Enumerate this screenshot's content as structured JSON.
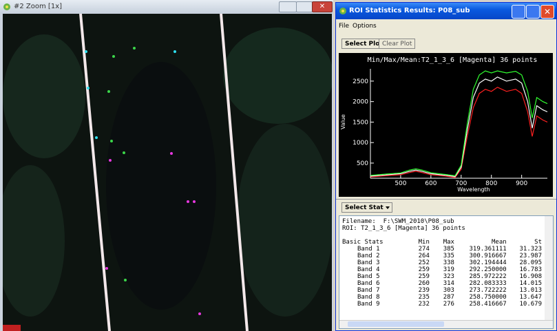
{
  "zoom_window": {
    "title": "#2 Zoom [1x]"
  },
  "stats_window": {
    "title": "ROI Statistics Results: P08_sub",
    "menu": [
      "File",
      "Options"
    ],
    "buttons": [
      "Select Plot",
      "Clear Plot"
    ],
    "stat_button": "Select Stat",
    "filename_line": "Filename:  F:\\SWM_2010\\P08_sub",
    "roi_line": "ROI: T2_1_3_6 [Magenta] 36 points",
    "table": {
      "header": [
        "Basic Stats",
        "Min",
        "Max",
        "Mean",
        "St"
      ],
      "rows": [
        [
          "Band 1",
          "274",
          "385",
          "319.361111",
          "31.323"
        ],
        [
          "Band 2",
          "264",
          "335",
          "300.916667",
          "23.987"
        ],
        [
          "Band 3",
          "252",
          "338",
          "302.194444",
          "28.095"
        ],
        [
          "Band 4",
          "259",
          "319",
          "292.250000",
          "16.783"
        ],
        [
          "Band 5",
          "259",
          "323",
          "285.972222",
          "16.908"
        ],
        [
          "Band 6",
          "260",
          "314",
          "282.083333",
          "14.015"
        ],
        [
          "Band 7",
          "239",
          "303",
          "273.722222",
          "13.013"
        ],
        [
          "Band 8",
          "235",
          "287",
          "258.750000",
          "13.647"
        ],
        [
          "Band 9",
          "232",
          "276",
          "258.416667",
          "10.679"
        ]
      ]
    }
  },
  "chart_data": {
    "type": "line",
    "title": "Min/Max/Mean:T2_1_3_6 [Magenta] 36 points",
    "xlabel": "Wavelength",
    "ylabel": "Value",
    "x": [
      400,
      450,
      500,
      530,
      550,
      570,
      600,
      650,
      680,
      700,
      720,
      740,
      760,
      780,
      800,
      820,
      850,
      880,
      900,
      920,
      935,
      950,
      970,
      985
    ],
    "series": [
      {
        "color": "#ff2020",
        "values": [
          160,
          190,
          215,
          270,
          300,
          270,
          215,
          180,
          150,
          350,
          1150,
          1850,
          2200,
          2300,
          2250,
          2350,
          2250,
          2300,
          2200,
          1750,
          1150,
          1650,
          1550,
          1500
        ]
      },
      {
        "color": "#ffffff",
        "values": [
          180,
          210,
          240,
          300,
          330,
          300,
          240,
          200,
          170,
          400,
          1300,
          2100,
          2450,
          2550,
          2500,
          2600,
          2500,
          2550,
          2450,
          2000,
          1350,
          1900,
          1800,
          1750
        ]
      },
      {
        "color": "#30ff30",
        "values": [
          200,
          230,
          260,
          330,
          360,
          330,
          265,
          220,
          190,
          450,
          1450,
          2300,
          2650,
          2750,
          2700,
          2750,
          2700,
          2740,
          2650,
          2250,
          1600,
          2100,
          2000,
          1950
        ]
      }
    ],
    "xlim": [
      400,
      985
    ],
    "ylim": [
      130,
      2800
    ],
    "xticks": [
      500,
      600,
      700,
      800,
      900
    ],
    "yticks": [
      500,
      1000,
      1500,
      2000,
      2500
    ]
  }
}
